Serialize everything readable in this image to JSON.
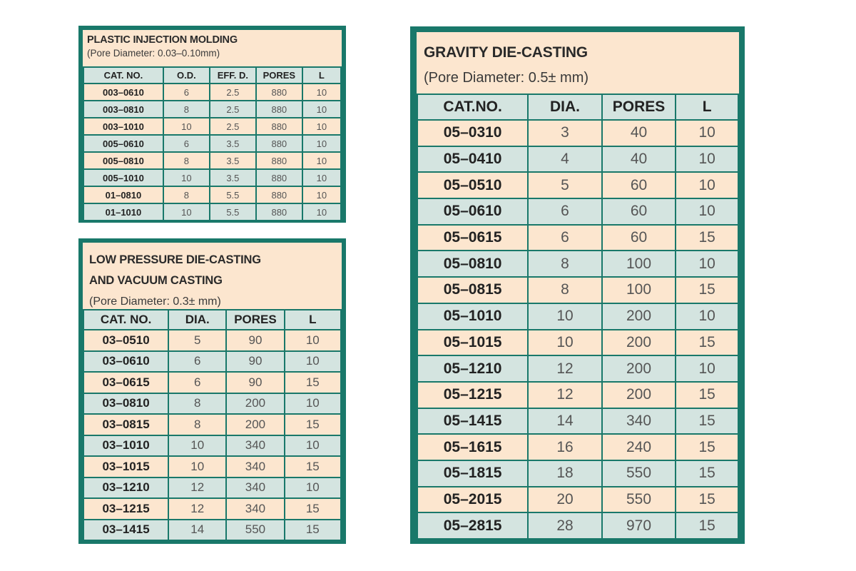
{
  "tables": [
    {
      "title_lines": [
        "PLASTIC INJECTION MOLDING"
      ],
      "subtitle": "(Pore Diameter: 0.03–0.10mm)",
      "headers": [
        "CAT. NO.",
        "O.D.",
        "EFF. D.",
        "PORES",
        "L"
      ],
      "rows": [
        [
          "003–0610",
          "6",
          "2.5",
          "880",
          "10"
        ],
        [
          "003–0810",
          "8",
          "2.5",
          "880",
          "10"
        ],
        [
          "003–1010",
          "10",
          "2.5",
          "880",
          "10"
        ],
        [
          "005–0610",
          "6",
          "3.5",
          "880",
          "10"
        ],
        [
          "005–0810",
          "8",
          "3.5",
          "880",
          "10"
        ],
        [
          "005–1010",
          "10",
          "3.5",
          "880",
          "10"
        ],
        [
          "01–0810",
          "8",
          "5.5",
          "880",
          "10"
        ],
        [
          "01–1010",
          "10",
          "5.5",
          "880",
          "10"
        ]
      ]
    },
    {
      "title_lines": [
        "LOW PRESSURE DIE-CASTING",
        "AND VACUUM CASTING"
      ],
      "subtitle": "(Pore Diameter: 0.3± mm)",
      "headers": [
        "CAT. NO.",
        "DIA.",
        "PORES",
        "L"
      ],
      "rows": [
        [
          "03–0510",
          "5",
          "90",
          "10"
        ],
        [
          "03–0610",
          "6",
          "90",
          "10"
        ],
        [
          "03–0615",
          "6",
          "90",
          "15"
        ],
        [
          "03–0810",
          "8",
          "200",
          "10"
        ],
        [
          "03–0815",
          "8",
          "200",
          "15"
        ],
        [
          "03–1010",
          "10",
          "340",
          "10"
        ],
        [
          "03–1015",
          "10",
          "340",
          "15"
        ],
        [
          "03–1210",
          "12",
          "340",
          "10"
        ],
        [
          "03–1215",
          "12",
          "340",
          "15"
        ],
        [
          "03–1415",
          "14",
          "550",
          "15"
        ]
      ]
    },
    {
      "title_lines": [
        "GRAVITY DIE-CASTING"
      ],
      "subtitle": "(Pore Diameter: 0.5± mm)",
      "headers": [
        "CAT.NO.",
        "DIA.",
        "PORES",
        "L"
      ],
      "rows": [
        [
          "05–0310",
          "3",
          "40",
          "10"
        ],
        [
          "05–0410",
          "4",
          "40",
          "10"
        ],
        [
          "05–0510",
          "5",
          "60",
          "10"
        ],
        [
          "05–0610",
          "6",
          "60",
          "10"
        ],
        [
          "05–0615",
          "6",
          "60",
          "15"
        ],
        [
          "05–0810",
          "8",
          "100",
          "10"
        ],
        [
          "05–0815",
          "8",
          "100",
          "15"
        ],
        [
          "05–1010",
          "10",
          "200",
          "10"
        ],
        [
          "05–1015",
          "10",
          "200",
          "15"
        ],
        [
          "05–1210",
          "12",
          "200",
          "10"
        ],
        [
          "05–1215",
          "12",
          "200",
          "15"
        ],
        [
          "05–1415",
          "14",
          "340",
          "15"
        ],
        [
          "05–1615",
          "16",
          "240",
          "15"
        ],
        [
          "05–1815",
          "18",
          "550",
          "15"
        ],
        [
          "05–2015",
          "20",
          "550",
          "15"
        ],
        [
          "05–2815",
          "28",
          "970",
          "15"
        ]
      ]
    }
  ],
  "colors": {
    "border": "#19786a",
    "peach": "#fce6cf",
    "blue": "#d4e4e0"
  }
}
